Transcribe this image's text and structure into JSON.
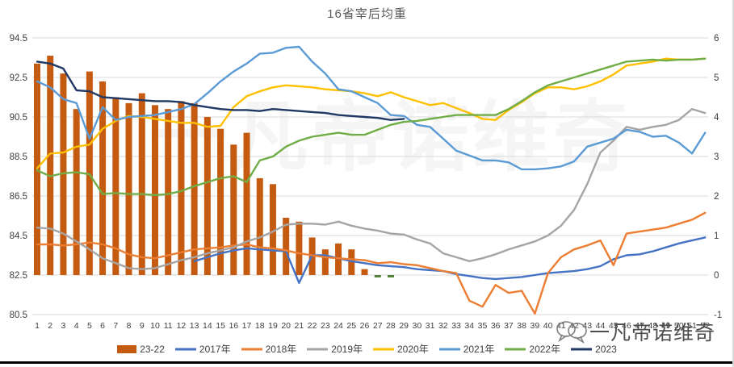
{
  "title": "16省宰后均重",
  "watermark": {
    "center_text": "一凡帝诺维奇",
    "bottom_text": "一凡帝诺维奇"
  },
  "chart_data": {
    "type": "bar",
    "subtype": "combo-bar-line",
    "title": "16省宰后均重",
    "xlabel": "",
    "ylabel": "",
    "grid": "horizontal",
    "legend_position": "bottom",
    "x": [
      1,
      2,
      3,
      4,
      5,
      6,
      7,
      8,
      9,
      10,
      11,
      12,
      13,
      14,
      15,
      16,
      17,
      18,
      19,
      20,
      21,
      22,
      23,
      24,
      25,
      26,
      27,
      28,
      29,
      30,
      31,
      32,
      33,
      34,
      35,
      36,
      37,
      38,
      39,
      40,
      41,
      42,
      43,
      44,
      45,
      46,
      47,
      48,
      49,
      50,
      51,
      52
    ],
    "left_axis": {
      "min": 80.5,
      "max": 94.5,
      "ticks": [
        94.5,
        92.5,
        90.5,
        88.5,
        86.5,
        84.5,
        82.5,
        80.5
      ]
    },
    "right_axis": {
      "min": -1,
      "max": 6,
      "ticks": [
        6,
        5,
        4,
        3,
        2,
        1,
        0,
        -1
      ]
    },
    "bar_series": {
      "name": "23-22",
      "axis": "right",
      "color": "#C55A11",
      "negative_color": "#538135",
      "start_week": 1,
      "values": [
        5.35,
        5.55,
        5.1,
        4.2,
        5.15,
        4.9,
        4.5,
        4.35,
        4.6,
        4.3,
        4.2,
        4.4,
        4.35,
        4.0,
        3.7,
        3.3,
        3.6,
        2.45,
        2.3,
        1.45,
        1.35,
        0.95,
        0.65,
        0.8,
        0.65,
        0.15,
        -0.06,
        -0.06
      ]
    },
    "series": [
      {
        "name": "2017年",
        "color": "#4472C4",
        "axis": "left",
        "start_week": 13,
        "values": [
          83.2,
          83.4,
          83.6,
          83.75,
          83.85,
          83.8,
          83.75,
          83.7,
          82.1,
          83.5,
          83.5,
          83.35,
          83.2,
          83.1,
          83.0,
          82.95,
          82.9,
          82.8,
          82.75,
          82.7,
          82.55,
          82.45,
          82.35,
          82.3,
          82.35,
          82.4,
          82.5,
          82.6,
          82.65,
          82.7,
          82.8,
          82.95,
          83.3,
          83.5,
          83.55,
          83.7,
          83.9,
          84.1,
          84.25,
          84.4
        ]
      },
      {
        "name": "2018年",
        "color": "#ED7D31",
        "axis": "left",
        "start_week": 1,
        "values": [
          84.05,
          84.05,
          84.0,
          84.05,
          84.15,
          84.05,
          83.85,
          83.55,
          83.4,
          83.35,
          83.5,
          83.65,
          83.8,
          83.85,
          83.9,
          84.0,
          84.05,
          83.9,
          83.85,
          83.75,
          83.6,
          83.5,
          83.4,
          83.35,
          83.3,
          83.25,
          83.1,
          83.15,
          83.05,
          83.0,
          82.85,
          82.7,
          82.6,
          81.2,
          80.9,
          82.0,
          81.6,
          81.7,
          80.55,
          82.6,
          83.4,
          83.8,
          84.0,
          84.25,
          83.0,
          84.6,
          84.7,
          84.8,
          84.9,
          85.1,
          85.3,
          85.65
        ]
      },
      {
        "name": "2019年",
        "color": "#A5A5A5",
        "axis": "left",
        "start_week": 1,
        "values": [
          84.9,
          84.85,
          84.6,
          84.2,
          83.8,
          83.35,
          83.1,
          82.85,
          82.8,
          82.85,
          83.05,
          83.25,
          83.4,
          83.6,
          83.75,
          83.9,
          84.2,
          84.4,
          84.7,
          85.05,
          85.1,
          85.1,
          85.05,
          85.2,
          85.0,
          84.85,
          84.75,
          84.6,
          84.55,
          84.3,
          84.1,
          83.6,
          83.4,
          83.2,
          83.35,
          83.55,
          83.8,
          84.0,
          84.2,
          84.5,
          85.0,
          85.8,
          87.1,
          88.7,
          89.3,
          90.0,
          89.85,
          90.0,
          90.1,
          90.35,
          90.9,
          90.7
        ]
      },
      {
        "name": "2020年",
        "color": "#FFC000",
        "axis": "left",
        "start_week": 1,
        "values": [
          87.9,
          88.65,
          88.7,
          89.0,
          89.1,
          89.9,
          90.3,
          90.55,
          90.5,
          90.4,
          90.3,
          90.2,
          90.2,
          90.0,
          90.05,
          91.0,
          91.55,
          91.8,
          92.0,
          92.1,
          92.05,
          92.0,
          91.9,
          91.85,
          91.8,
          91.7,
          91.55,
          91.75,
          91.5,
          91.3,
          91.1,
          91.2,
          90.95,
          90.7,
          90.4,
          90.35,
          90.85,
          91.25,
          91.7,
          92.0,
          92.0,
          91.9,
          92.05,
          92.3,
          92.65,
          93.1,
          93.2,
          93.3,
          93.45,
          93.4,
          93.4,
          93.45
        ]
      },
      {
        "name": "2021年",
        "color": "#5B9BD5",
        "axis": "left",
        "start_week": 1,
        "values": [
          92.3,
          92.0,
          91.4,
          91.2,
          89.4,
          91.0,
          90.35,
          90.5,
          90.55,
          90.6,
          90.75,
          90.9,
          91.15,
          91.7,
          92.3,
          92.8,
          93.2,
          93.7,
          93.75,
          94.0,
          94.05,
          93.3,
          92.7,
          91.9,
          91.8,
          91.5,
          91.2,
          90.6,
          90.55,
          90.1,
          90.0,
          89.4,
          88.8,
          88.55,
          88.3,
          88.3,
          88.2,
          87.85,
          87.85,
          87.9,
          88.0,
          88.25,
          89.0,
          89.2,
          89.4,
          89.85,
          89.75,
          89.5,
          89.55,
          89.2,
          88.65,
          89.7
        ]
      },
      {
        "name": "2022年",
        "color": "#70AD47",
        "axis": "left",
        "start_week": 1,
        "values": [
          87.8,
          87.5,
          87.65,
          87.7,
          87.6,
          86.6,
          86.65,
          86.6,
          86.6,
          86.55,
          86.6,
          86.75,
          87.0,
          87.2,
          87.4,
          87.5,
          87.2,
          88.3,
          88.5,
          89.0,
          89.3,
          89.5,
          89.6,
          89.7,
          89.6,
          89.6,
          89.85,
          90.1,
          90.25,
          90.3,
          90.4,
          90.5,
          90.6,
          90.6,
          90.6,
          90.6,
          90.9,
          91.3,
          91.75,
          92.1,
          92.3,
          92.5,
          92.7,
          92.9,
          93.1,
          93.3,
          93.35,
          93.4,
          93.35,
          93.4,
          93.4,
          93.45
        ]
      },
      {
        "name": "2023",
        "color": "#1F3864",
        "axis": "left",
        "start_week": 1,
        "values": [
          93.3,
          93.2,
          92.95,
          91.85,
          91.8,
          91.5,
          91.45,
          91.4,
          91.35,
          91.3,
          91.3,
          91.25,
          91.1,
          91.0,
          90.9,
          90.85,
          90.85,
          90.8,
          90.9,
          90.85,
          90.8,
          90.75,
          90.7,
          90.6,
          90.55,
          90.5,
          90.45,
          90.35,
          90.4
        ]
      }
    ],
    "legend": [
      "23-22",
      "2017年",
      "2018年",
      "2019年",
      "2020年",
      "2021年",
      "2022年",
      "2023"
    ]
  }
}
